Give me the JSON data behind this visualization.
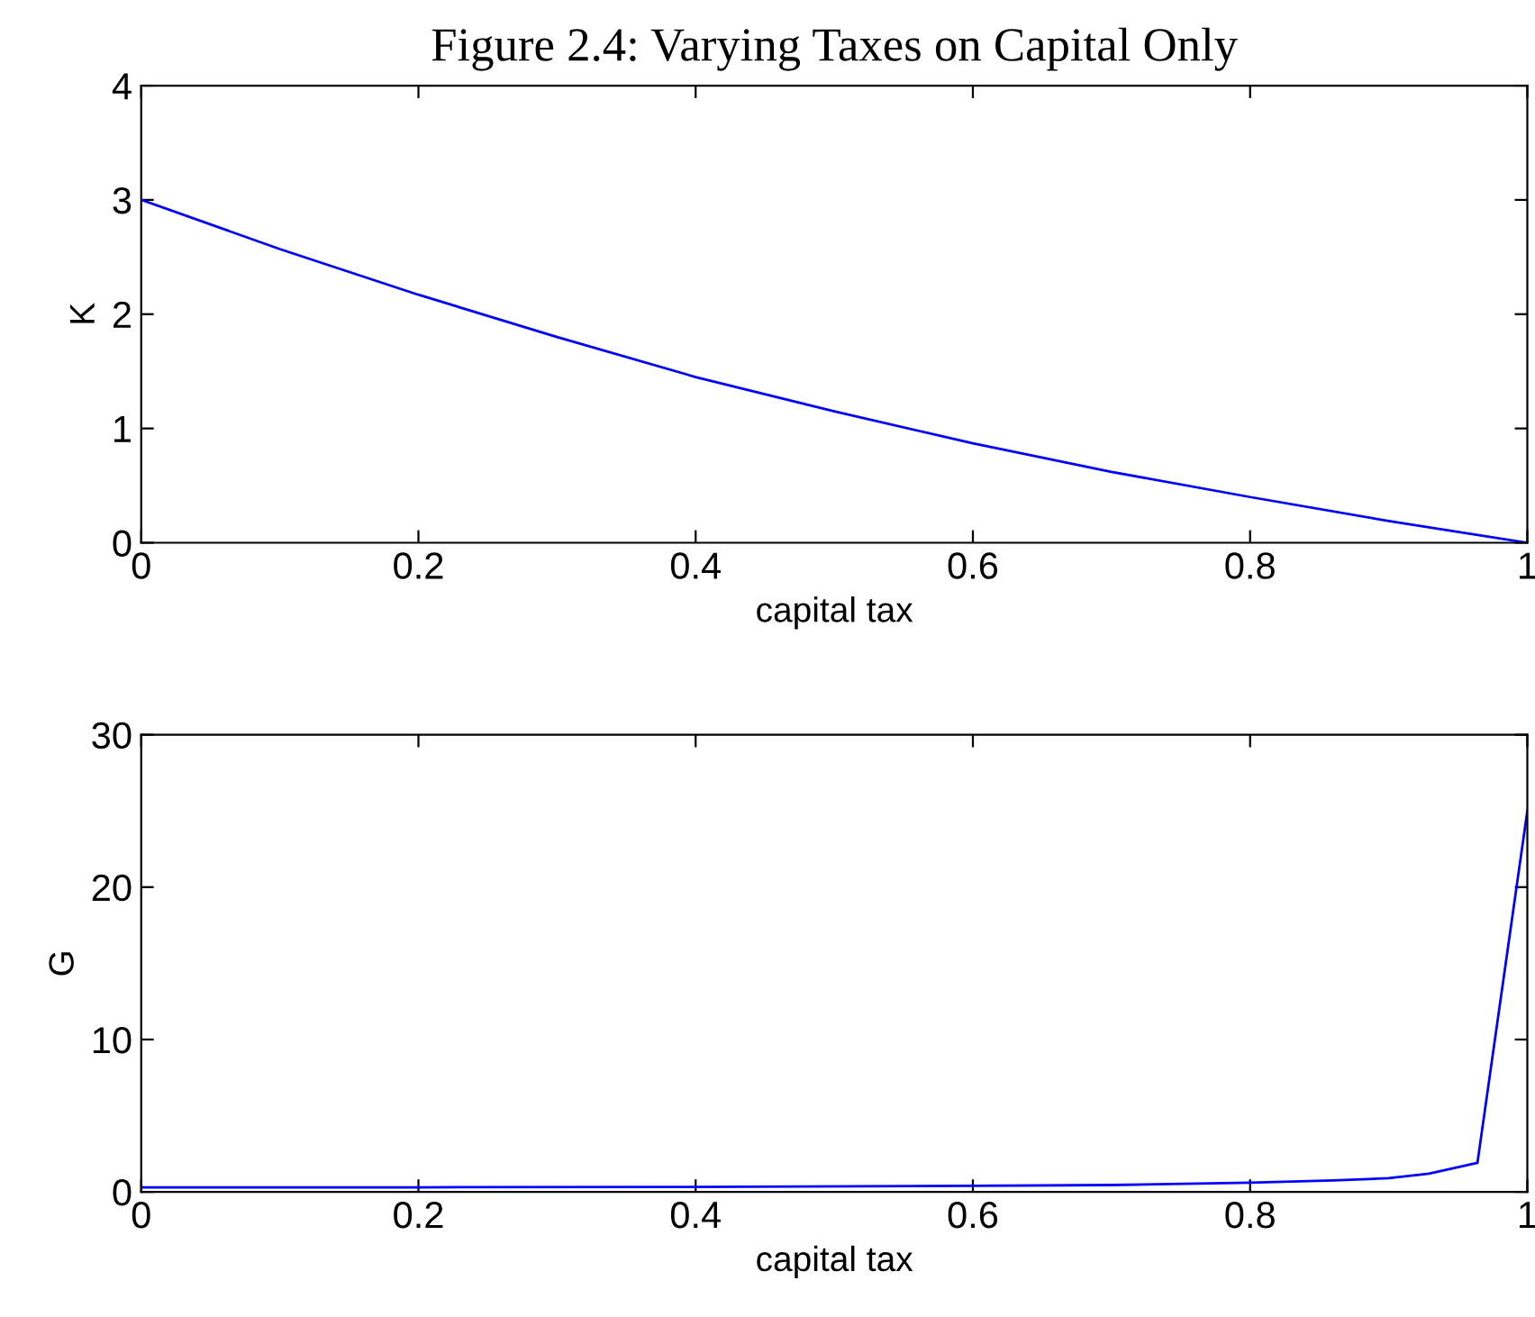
{
  "chart_data": [
    {
      "type": "line",
      "title": "Figure 2.4: Varying Taxes on Capital Only",
      "xlabel": "capital tax",
      "ylabel": "K",
      "x": [
        0,
        0.1,
        0.2,
        0.3,
        0.4,
        0.5,
        0.6,
        0.7,
        0.8,
        0.9,
        1.0
      ],
      "series": [
        {
          "color": "#0000ff",
          "values": [
            3.0,
            2.57,
            2.17,
            1.8,
            1.45,
            1.15,
            0.87,
            0.62,
            0.4,
            0.19,
            0.0
          ]
        }
      ],
      "xlim": [
        0,
        1
      ],
      "xticks": [
        0,
        0.2,
        0.4,
        0.6,
        0.8,
        1
      ],
      "ylim": [
        0,
        4
      ],
      "yticks": [
        0,
        1,
        2,
        3,
        4
      ],
      "grid": false,
      "legend": false,
      "marker": "none",
      "line_style": "solid"
    },
    {
      "type": "line",
      "xlabel": "capital tax",
      "ylabel": "G",
      "x": [
        0,
        0.2,
        0.4,
        0.6,
        0.7,
        0.8,
        0.86,
        0.9,
        0.929,
        0.964,
        1.0
      ],
      "series": [
        {
          "color": "#0000ff",
          "values": [
            0.3,
            0.3,
            0.33,
            0.4,
            0.45,
            0.6,
            0.75,
            0.9,
            1.2,
            1.9,
            25
          ]
        }
      ],
      "xlim": [
        0,
        1
      ],
      "xticks": [
        0,
        0.2,
        0.4,
        0.6,
        0.8,
        1
      ],
      "ylim": [
        0,
        30
      ],
      "yticks": [
        0,
        10,
        20,
        30
      ],
      "grid": false,
      "legend": false,
      "marker": "none",
      "line_style": "solid"
    }
  ]
}
